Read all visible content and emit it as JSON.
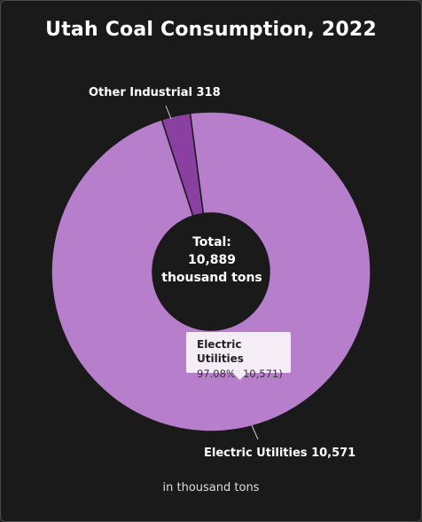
{
  "chart_data": {
    "type": "pie",
    "title": "Utah Coal Consumption, 2022",
    "categories": [
      "Other Industrial",
      "Electric Utilities"
    ],
    "values": [
      318,
      10571
    ],
    "colors": [
      "#8a40a0",
      "#b77ecb"
    ],
    "slice_labels": [
      "Other Industrial 318",
      "Electric Utilities 10,571"
    ],
    "center_label": [
      "Total:",
      "10,889",
      "thousand tons"
    ],
    "unit_note": "in thousand tons",
    "tooltip": {
      "title": "Electric Utilities",
      "value": "97.08% (10,571)"
    }
  }
}
